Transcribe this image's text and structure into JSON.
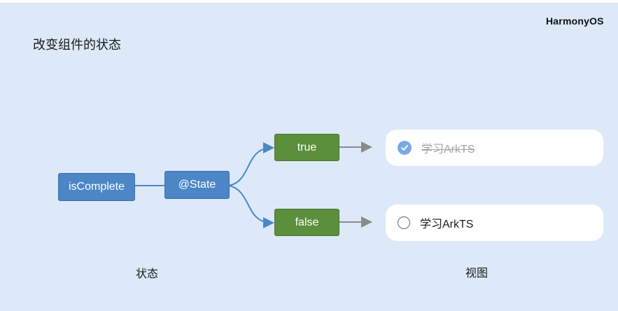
{
  "slide": {
    "title": "改变组件的状态",
    "brand": "HarmonyOS"
  },
  "diagram": {
    "state_var": "isComplete",
    "decorator": "@State",
    "true_value": "true",
    "false_value": "false",
    "view_checked_label": "学习ArkTS",
    "view_unchecked_label": "学习ArkTS",
    "caption_state": "状态",
    "caption_view": "视图"
  },
  "colors": {
    "background": "#dde9f9",
    "blue_box": "#4c86c6",
    "green_box": "#5b8f3c",
    "arrow_blue": "#4c86c6",
    "arrow_gray": "#8a8a8a",
    "check_fill": "#7aa8e8"
  },
  "icons": {
    "checked": "check-circle-icon",
    "unchecked": "empty-circle-icon"
  }
}
